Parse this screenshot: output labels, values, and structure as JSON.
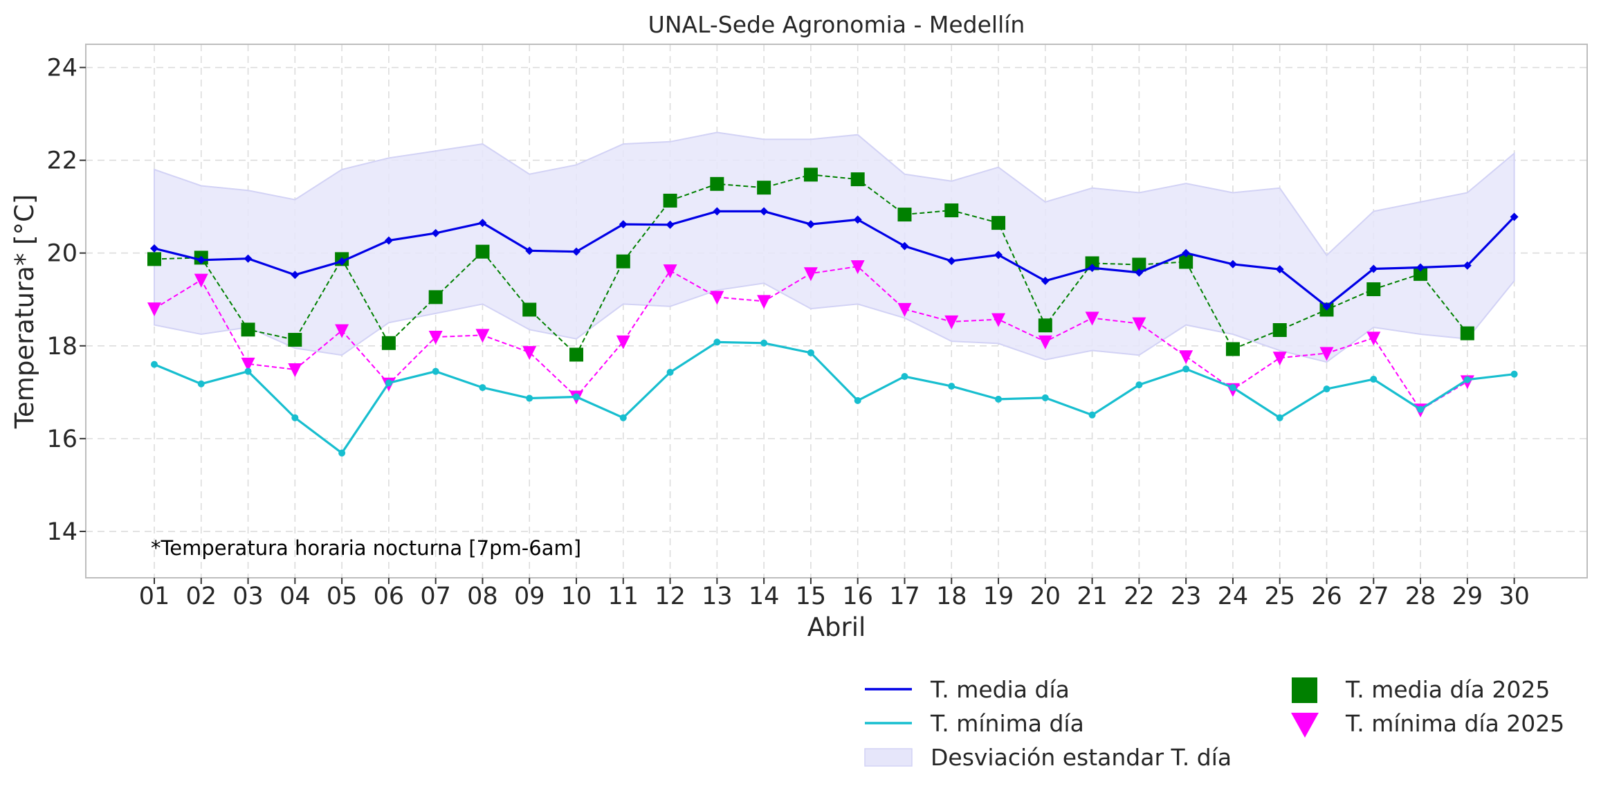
{
  "chart_data": {
    "type": "line",
    "title": "UNAL-Sede Agronomia - Medellín",
    "xlabel": "Abril",
    "ylabel": "Temperatura* [°C]",
    "note": "*Temperatura horaria nocturna [7pm-6am]",
    "ylim": [
      13,
      24.5
    ],
    "yticks": [
      14,
      16,
      18,
      20,
      22,
      24
    ],
    "grid": true,
    "legend_position": "bottom-right",
    "categories": [
      "01",
      "02",
      "03",
      "04",
      "05",
      "06",
      "07",
      "08",
      "09",
      "10",
      "11",
      "12",
      "13",
      "14",
      "15",
      "16",
      "17",
      "18",
      "19",
      "20",
      "21",
      "22",
      "23",
      "24",
      "25",
      "26",
      "27",
      "28",
      "29",
      "30"
    ],
    "band": {
      "name": "Desviación estandar T. día",
      "color": "#e6e6fa",
      "upper": [
        21.8,
        21.45,
        21.35,
        21.15,
        21.8,
        22.05,
        22.2,
        22.35,
        21.7,
        21.9,
        22.35,
        22.4,
        22.6,
        22.45,
        22.45,
        22.55,
        21.7,
        21.55,
        21.85,
        21.1,
        21.4,
        21.3,
        21.5,
        21.3,
        21.4,
        19.95,
        20.9,
        21.1,
        21.3,
        22.15
      ],
      "lower": [
        18.45,
        18.25,
        18.4,
        17.95,
        17.8,
        18.5,
        18.7,
        18.9,
        18.35,
        18.15,
        18.9,
        18.85,
        19.2,
        19.35,
        18.8,
        18.9,
        18.6,
        18.1,
        18.05,
        17.7,
        17.9,
        17.8,
        18.45,
        18.25,
        17.9,
        17.65,
        18.4,
        18.25,
        18.15,
        19.4
      ]
    },
    "series": [
      {
        "name": "T. media día",
        "color": "#0000e6",
        "style": "solid",
        "marker": "diamond",
        "values": [
          20.1,
          19.85,
          19.88,
          19.53,
          19.82,
          20.27,
          20.43,
          20.65,
          20.05,
          20.03,
          20.62,
          20.61,
          20.9,
          20.9,
          20.62,
          20.72,
          20.15,
          19.83,
          19.96,
          19.4,
          19.68,
          19.58,
          20.0,
          19.76,
          19.65,
          18.85,
          19.66,
          19.69,
          19.73,
          20.78
        ]
      },
      {
        "name": "T. mínima día",
        "color": "#17becf",
        "style": "solid",
        "marker": "circle",
        "values": [
          17.6,
          17.18,
          17.45,
          16.45,
          15.69,
          17.2,
          17.45,
          17.1,
          16.87,
          16.9,
          16.45,
          17.43,
          18.08,
          18.06,
          17.85,
          16.82,
          17.34,
          17.13,
          16.85,
          16.88,
          16.51,
          17.16,
          17.5,
          17.1,
          16.45,
          17.07,
          17.28,
          16.63,
          17.27,
          17.39
        ]
      },
      {
        "name": "T. media día 2025",
        "color": "#008000",
        "style": "dashed",
        "marker": "square",
        "values": [
          19.87,
          19.9,
          18.35,
          18.13,
          19.87,
          18.06,
          19.05,
          20.03,
          18.78,
          17.81,
          19.82,
          21.13,
          21.49,
          21.41,
          21.69,
          21.59,
          20.83,
          20.92,
          20.65,
          18.44,
          19.78,
          19.75,
          19.81,
          17.93,
          18.34,
          18.78,
          19.22,
          19.55,
          18.27,
          null
        ]
      },
      {
        "name": "T. mínima día 2025",
        "color": "#ff00ff",
        "style": "dashed",
        "marker": "triangle-down",
        "values": [
          18.8,
          19.42,
          17.61,
          17.49,
          18.33,
          17.18,
          18.19,
          18.23,
          17.86,
          16.9,
          18.09,
          19.62,
          19.05,
          18.96,
          19.56,
          19.71,
          18.79,
          18.52,
          18.57,
          18.09,
          18.6,
          18.48,
          17.77,
          17.06,
          17.74,
          17.84,
          18.17,
          16.62,
          17.23,
          null
        ]
      }
    ]
  }
}
